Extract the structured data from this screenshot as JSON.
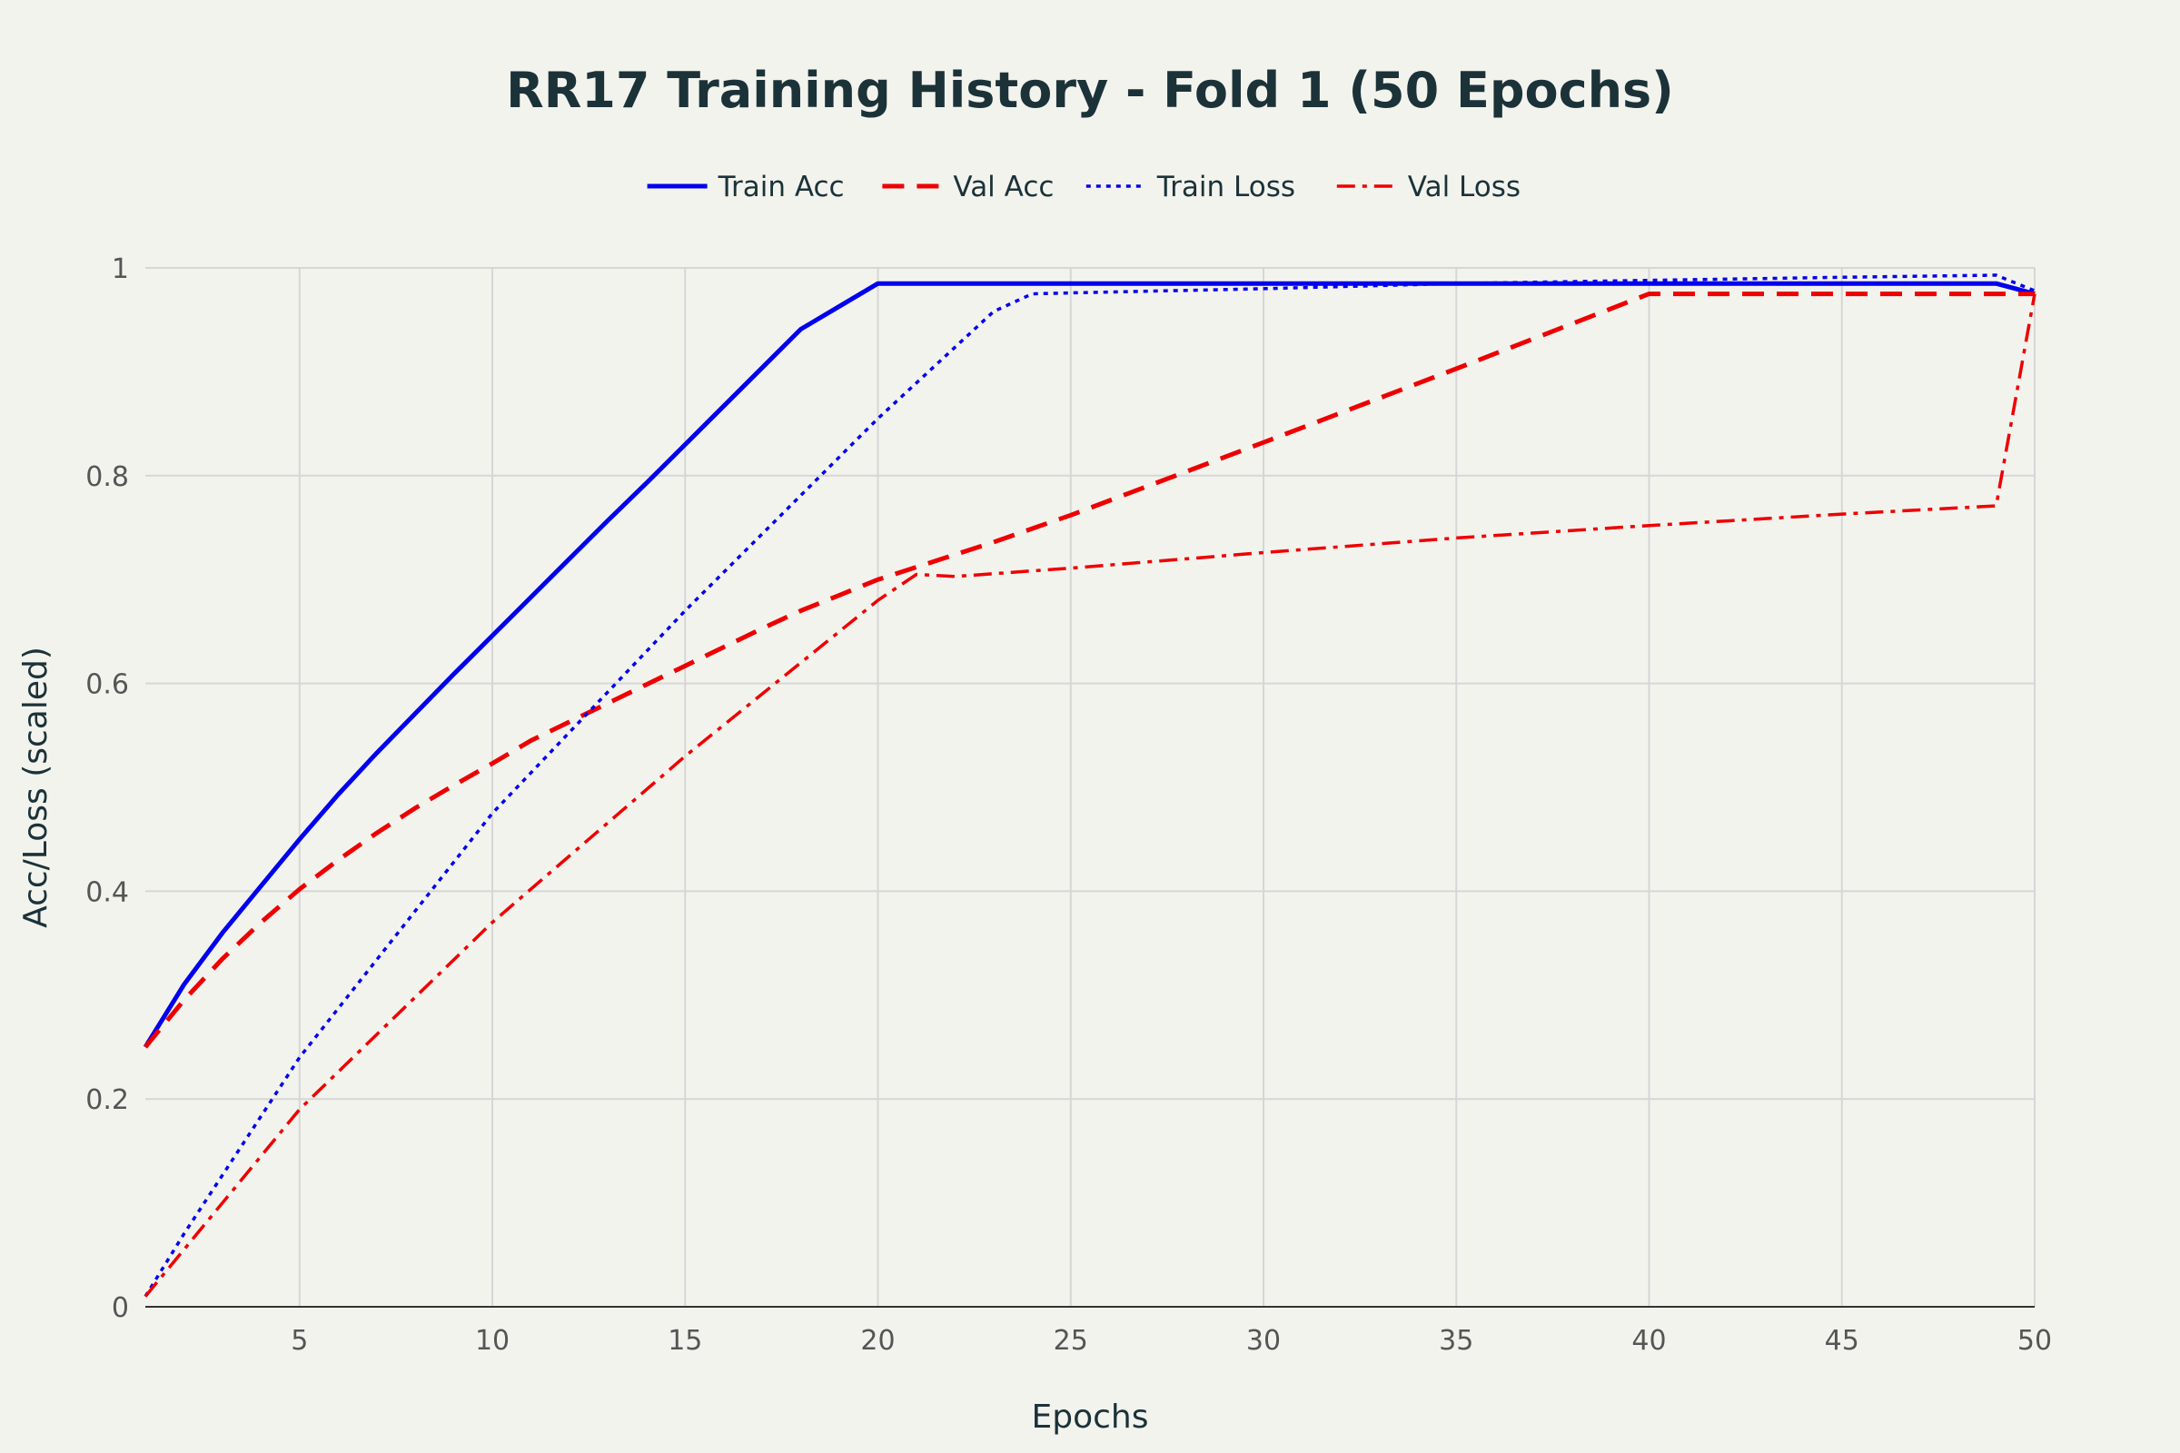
{
  "chart_data": {
    "type": "line",
    "title": "RR17 Training History - Fold 1 (50 Epochs)",
    "xlabel": "Epochs",
    "ylabel": "Acc/Loss (scaled)",
    "xlim": [
      1,
      50
    ],
    "ylim": [
      0,
      1
    ],
    "xticks": [
      5,
      10,
      15,
      20,
      25,
      30,
      35,
      40,
      45,
      50
    ],
    "yticks": [
      0,
      0.2,
      0.4,
      0.6,
      0.8,
      1
    ],
    "ytick_labels": [
      "0",
      "0.2",
      "0.4",
      "0.6",
      "0.8",
      "1"
    ],
    "grid": true,
    "legend_position": "top-center",
    "series": [
      {
        "name": "Train Acc",
        "color": "#0000ee",
        "dash": "solid",
        "x": [
          1,
          2,
          3,
          4,
          5,
          6,
          7,
          8,
          9,
          10,
          11,
          12,
          13,
          14,
          15,
          16,
          17,
          18,
          19,
          20,
          49,
          50
        ],
        "y": [
          0.25,
          0.31,
          0.36,
          0.405,
          0.45,
          0.493,
          0.533,
          0.571,
          0.609,
          0.646,
          0.683,
          0.72,
          0.757,
          0.793,
          0.83,
          0.867,
          0.904,
          0.941,
          0.963,
          0.985,
          0.985,
          0.975
        ]
      },
      {
        "name": "Val Acc",
        "color": "#ee0000",
        "dash": "dash",
        "x": [
          1,
          2,
          3,
          4,
          5,
          6,
          7,
          8,
          9,
          10,
          11,
          12,
          13,
          14,
          15,
          16,
          17,
          18,
          19,
          20,
          21,
          22,
          23,
          24,
          25,
          30,
          35,
          40,
          49,
          50
        ],
        "y": [
          0.25,
          0.295,
          0.335,
          0.37,
          0.402,
          0.43,
          0.456,
          0.48,
          0.502,
          0.523,
          0.545,
          0.563,
          0.581,
          0.599,
          0.617,
          0.635,
          0.653,
          0.67,
          0.685,
          0.7,
          0.712,
          0.724,
          0.736,
          0.749,
          0.762,
          0.832,
          0.903,
          0.975,
          0.975,
          0.975
        ]
      },
      {
        "name": "Train Loss",
        "color": "#0000ee",
        "dash": "dot",
        "x": [
          1,
          2,
          5,
          10,
          15,
          20,
          23,
          24,
          25,
          30,
          35,
          40,
          45,
          49,
          50
        ],
        "y": [
          0.01,
          0.07,
          0.24,
          0.475,
          0.67,
          0.855,
          0.958,
          0.975,
          0.976,
          0.98,
          0.985,
          0.988,
          0.991,
          0.993,
          0.978
        ]
      },
      {
        "name": "Val Loss",
        "color": "#ee0000",
        "dash": "dashdot",
        "x": [
          1,
          5,
          10,
          15,
          20,
          21,
          22,
          25,
          30,
          35,
          40,
          45,
          49,
          50
        ],
        "y": [
          0.01,
          0.19,
          0.37,
          0.53,
          0.68,
          0.705,
          0.703,
          0.711,
          0.726,
          0.74,
          0.752,
          0.763,
          0.771,
          0.975
        ]
      }
    ]
  }
}
